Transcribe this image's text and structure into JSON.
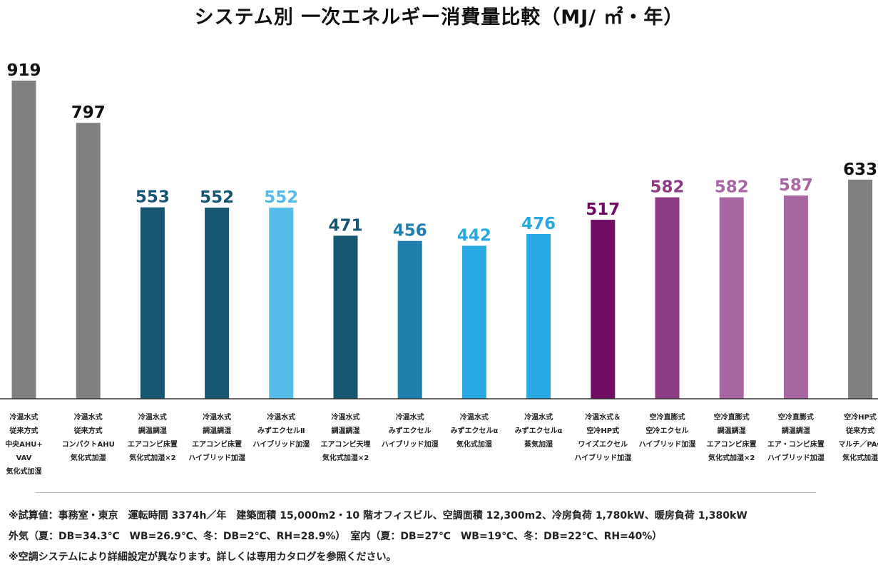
{
  "chart_data": {
    "type": "bar",
    "title": "システム別 一次エネルギー消費量比較（MJ/ ㎡・年）",
    "categories": [
      [
        "冷温水式",
        "従来方式",
        "中央AHU+",
        "VAV",
        "気化式加湿"
      ],
      [
        "冷温水式",
        "従来方式",
        "コンパクトAHU",
        "気化式加湿"
      ],
      [
        "冷温水式",
        "調温調湿",
        "エアコンビ床置",
        "気化式加湿×2"
      ],
      [
        "冷温水式",
        "調温調湿",
        "エアコンビ床置",
        "ハイブリッド加湿"
      ],
      [
        "冷温水式",
        "みずエクセルⅡ",
        "ハイブリッド加湿"
      ],
      [
        "冷温水式",
        "調温調湿",
        "エアコンビ天埋",
        "気化式加湿×2"
      ],
      [
        "冷温水式",
        "みずエクセル",
        "ハイブリッド加湿"
      ],
      [
        "冷温水式",
        "みずエクセルα",
        "気化式加湿"
      ],
      [
        "冷温水式",
        "みずエクセルα",
        "蒸気加湿"
      ],
      [
        "冷温水式＆",
        "空冷HP式",
        "ワイズエクセル",
        "ハイブリッド加湿"
      ],
      [
        "空冷直膨式",
        "空冷エクセル",
        "ハイブリッド加湿"
      ],
      [
        "空冷直膨式",
        "調温調湿",
        "エアコンビ床置",
        "気化式加湿×2"
      ],
      [
        "空冷直膨式",
        "調温調湿",
        "エア・コンビ床置",
        "ハイブリッド加湿"
      ],
      [
        "空冷HP式",
        "従来方式",
        "マルチ／PAC",
        "気化式加湿"
      ]
    ],
    "values": [
      919,
      797,
      553,
      552,
      552,
      471,
      456,
      442,
      476,
      517,
      582,
      582,
      587,
      633
    ],
    "value_labels": [
      "919",
      "797",
      "553",
      "552",
      "552",
      "471",
      "456",
      "442",
      "476",
      "517",
      "582",
      "582",
      "587",
      "633"
    ],
    "colors": [
      "#808080",
      "#808080",
      "#175671",
      "#175671",
      "#55bbe8",
      "#175671",
      "#1e7fad",
      "#29a9e4",
      "#29a9e4",
      "#6f0d62",
      "#8c3c83",
      "#a866a3",
      "#a866a3",
      "#808080"
    ],
    "ylim": [
      0,
      1000
    ],
    "grid": false,
    "legend": "none"
  },
  "notes": [
    "※試算値：事務室・東京　運転時間 3374h／年　建築面積 15,000m2・10 階オフィスビル、空調面積 12,300m2、冷房負荷 1,780kW、暖房負荷 1,380kW",
    "外気（夏：DB=34.3℃　WB=26.9℃、冬：DB=2℃、RH=28.9%）　室内（夏：DB=27℃　WB=19℃、冬：DB=22℃、RH=40%）",
    "※空調システムにより詳細設定が異なります。詳しくは専用カタログを参照ください。"
  ]
}
